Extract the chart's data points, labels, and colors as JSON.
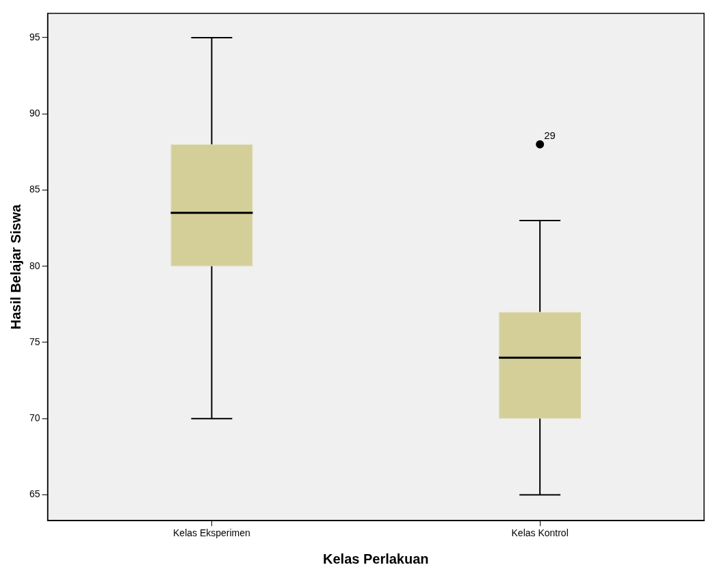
{
  "chart_data": {
    "type": "box",
    "xlabel": "Kelas Perlakuan",
    "ylabel": "Hasil Belajar Siswa",
    "categories": [
      "Kelas Eksperimen",
      "Kelas Kontrol"
    ],
    "color": "#d4cf99",
    "boxes": [
      {
        "low": 70,
        "q1": 80,
        "median": 83.5,
        "q3": 88,
        "high": 95
      },
      {
        "low": 65,
        "q1": 70,
        "median": 74,
        "q3": 77,
        "high": 83,
        "outliers": [
          88
        ]
      }
    ],
    "annotations": [
      "29"
    ],
    "ylim": [
      63.3,
      96.6
    ],
    "yticks": [
      65,
      70,
      75,
      80,
      85,
      90,
      95
    ],
    "grid": false,
    "legend": false
  }
}
